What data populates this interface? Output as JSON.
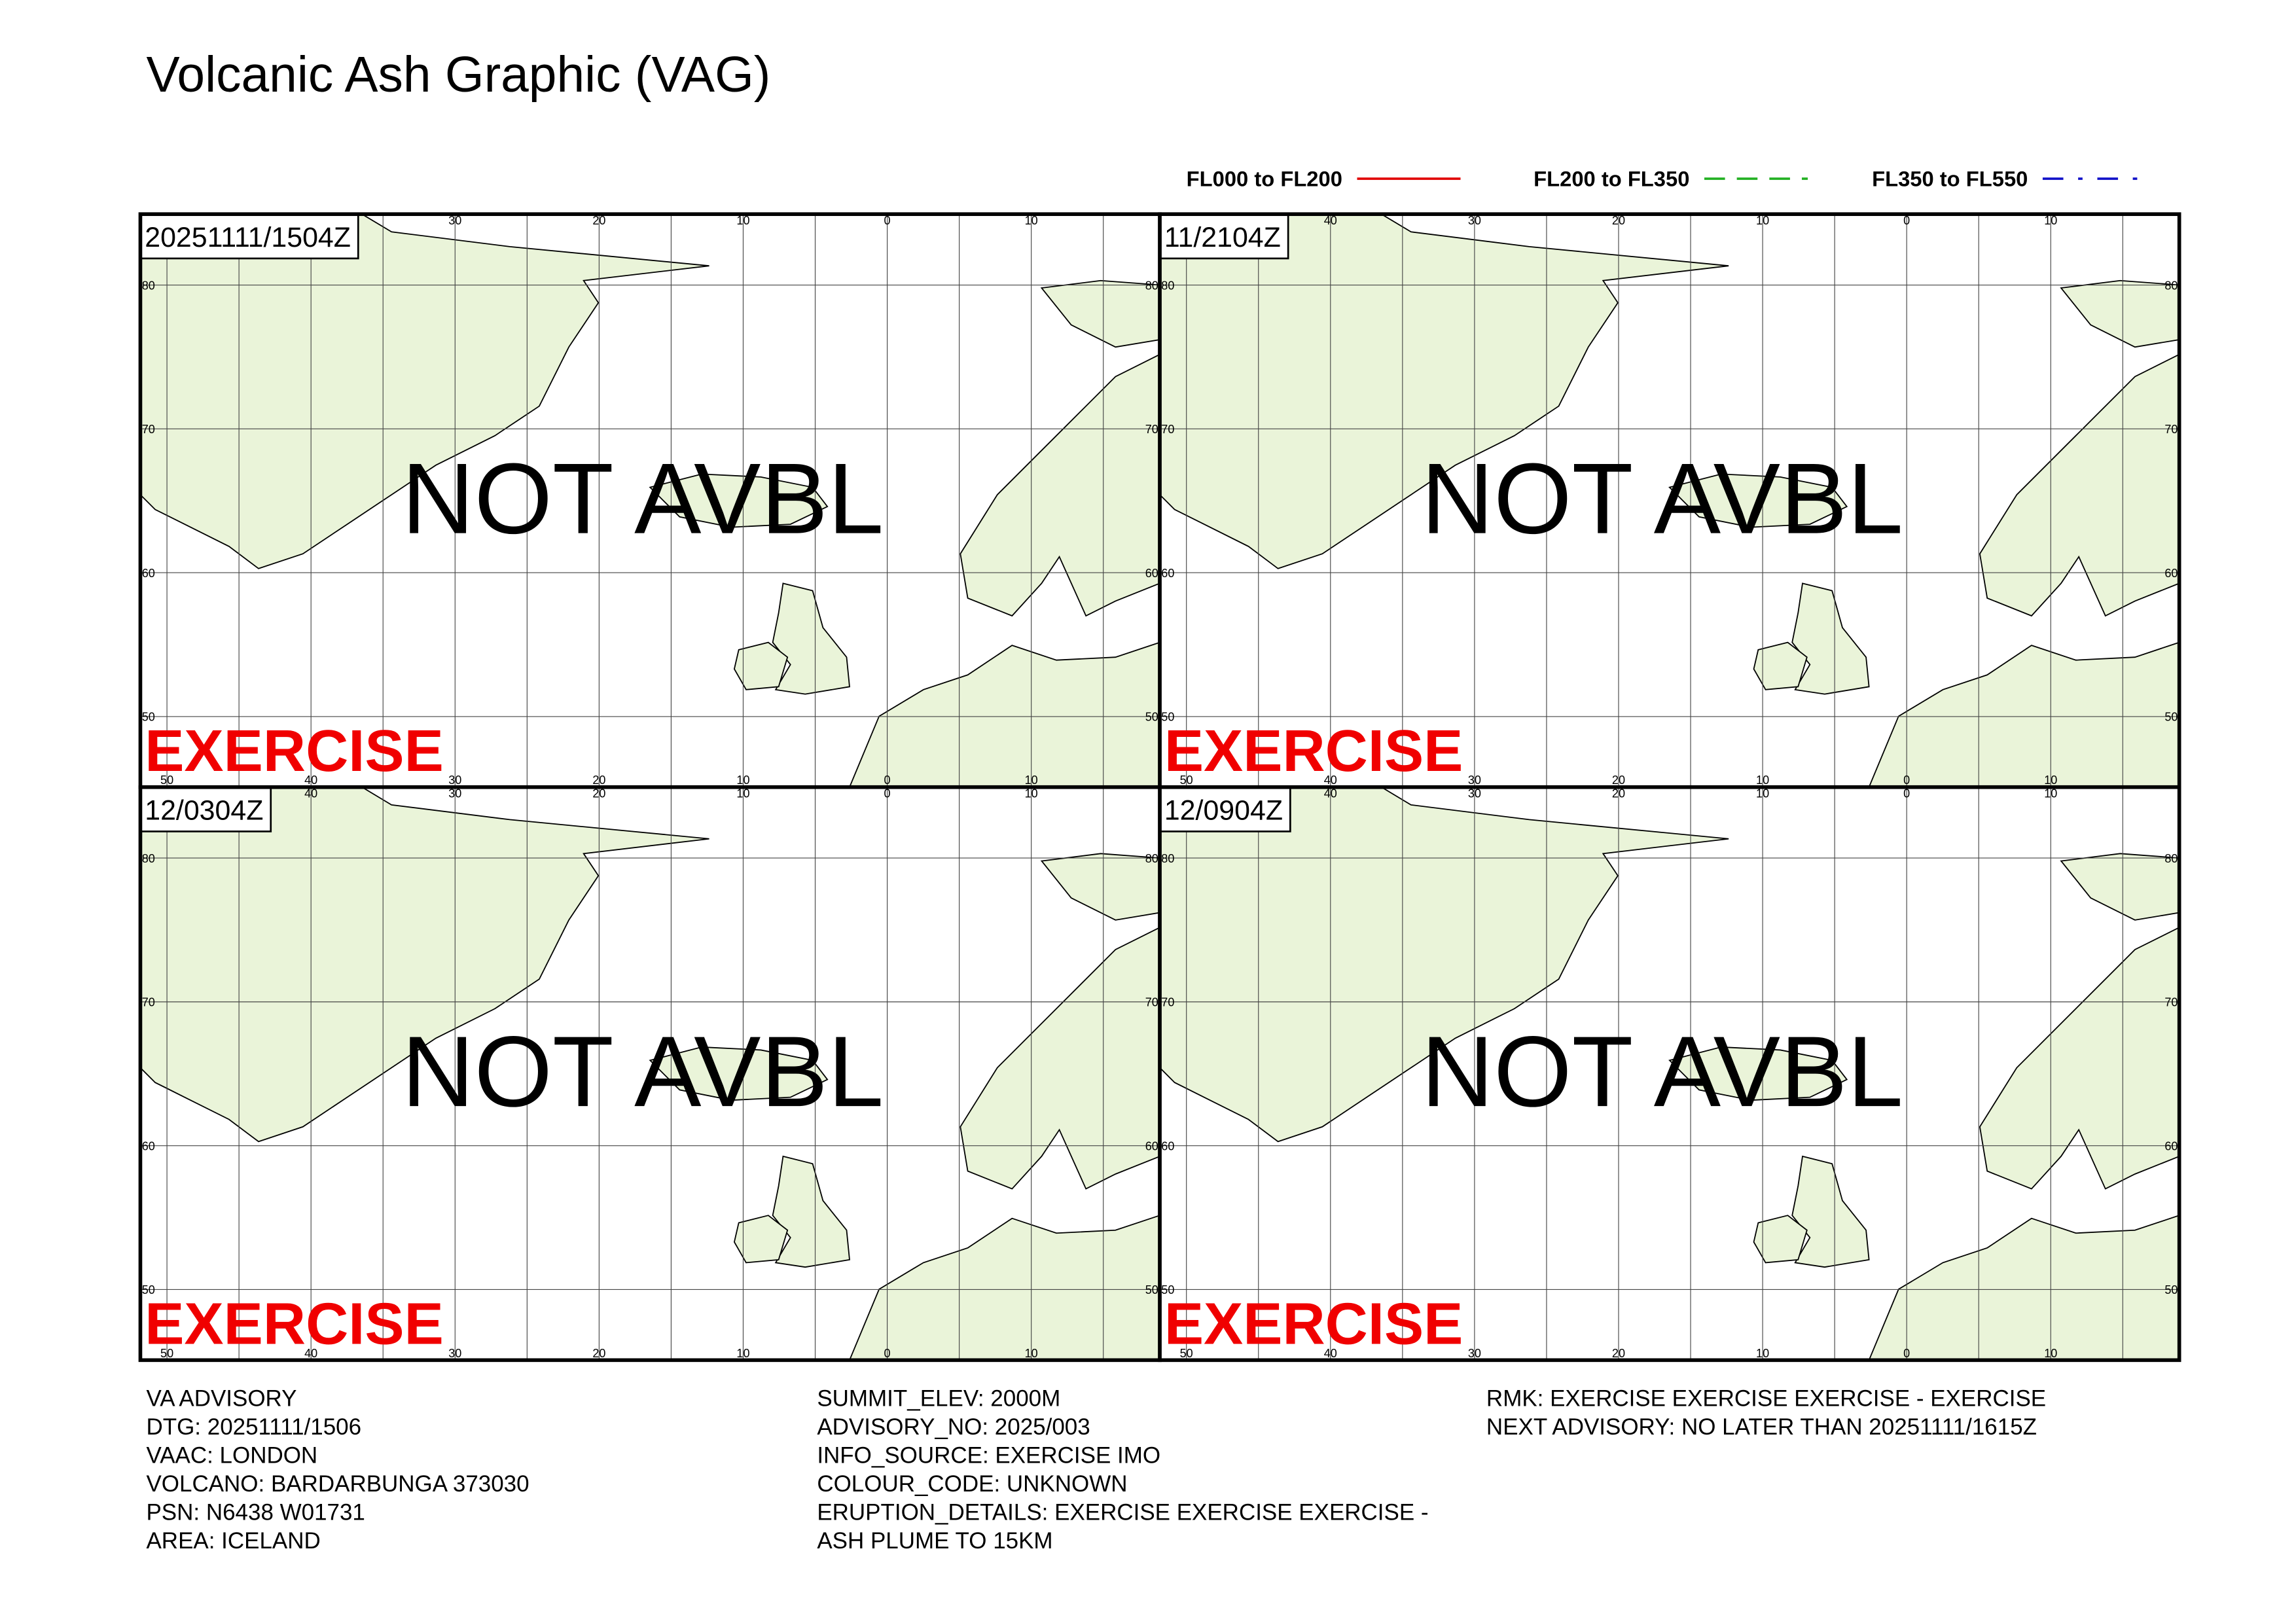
{
  "title": "Volcanic Ash Graphic (VAG)",
  "legend": [
    {
      "label": "FL000 to FL200",
      "color": "#e00000",
      "dash": "solid"
    },
    {
      "label": "FL200 to FL350",
      "color": "#22b022",
      "dash": "dashed"
    },
    {
      "label": "FL350 to FL550",
      "color": "#1010c8",
      "dash": "dashdot"
    }
  ],
  "grid": {
    "lon_labels": [
      "50",
      "40",
      "30",
      "20",
      "10",
      "0",
      "10"
    ],
    "lat_labels": [
      "80",
      "70",
      "60",
      "50"
    ]
  },
  "panels": [
    {
      "time": "20251111/1504Z",
      "status": "NOT AVBL",
      "watermark": "EXERCISE"
    },
    {
      "time": "11/2104Z",
      "status": "NOT AVBL",
      "watermark": "EXERCISE"
    },
    {
      "time": "12/0304Z",
      "status": "NOT AVBL",
      "watermark": "EXERCISE"
    },
    {
      "time": "12/0904Z",
      "status": "NOT AVBL",
      "watermark": "EXERCISE"
    }
  ],
  "advisory": {
    "columns": [
      [
        "VA ADVISORY",
        "DTG: 20251111/1506",
        "VAAC: LONDON",
        "VOLCANO: BARDARBUNGA 373030",
        "PSN: N6438 W01731",
        "AREA: ICELAND"
      ],
      [
        "SUMMIT_ELEV: 2000M",
        "ADVISORY_NO: 2025/003",
        "INFO_SOURCE: EXERCISE IMO",
        "COLOUR_CODE: UNKNOWN",
        "ERUPTION_DETAILS: EXERCISE EXERCISE EXERCISE -",
        "ASH PLUME TO 15KM"
      ],
      [
        "RMK: EXERCISE EXERCISE EXERCISE - EXERCISE",
        "NEXT ADVISORY: NO LATER THAN 20251111/1615Z"
      ]
    ]
  }
}
